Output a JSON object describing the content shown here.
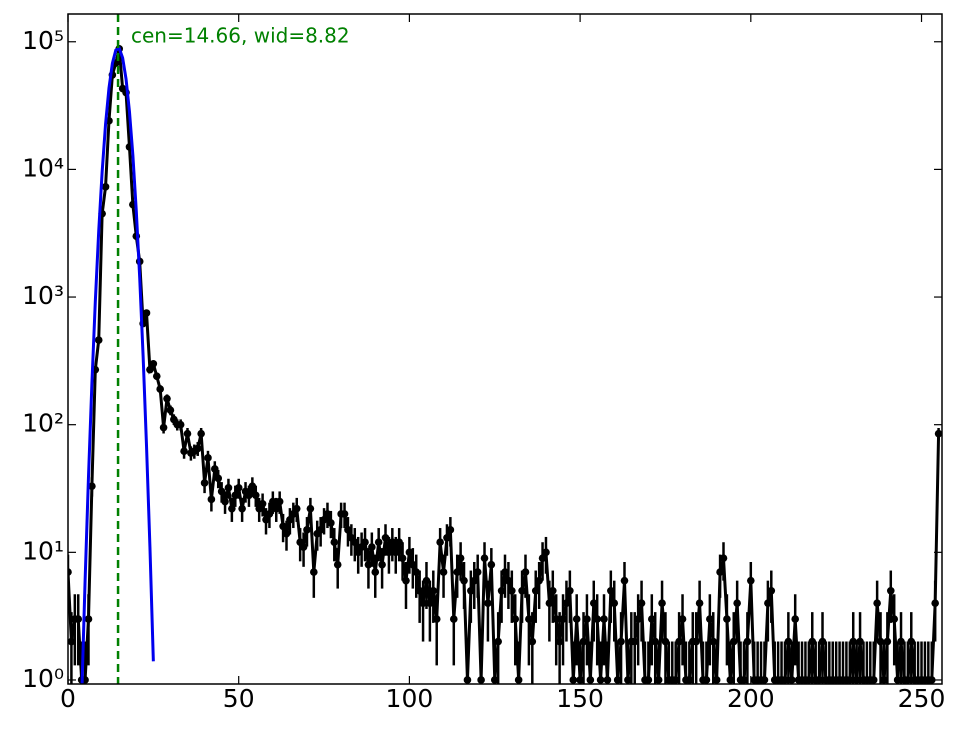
{
  "chart_data": {
    "type": "errorbar",
    "annotation": "cen=14.66, wid=8.82",
    "vline": {
      "x": 14.66,
      "color": "#008000"
    },
    "xlim": [
      0,
      256
    ],
    "ylim": [
      0.93,
      165000
    ],
    "log_y": true,
    "xticks": [
      0,
      50,
      100,
      150,
      200,
      250
    ],
    "yticks": [
      {
        "value": 1,
        "label": "10⁰"
      },
      {
        "value": 10,
        "label": "10¹"
      },
      {
        "value": 100,
        "label": "10²"
      },
      {
        "value": 1000,
        "label": "10³"
      },
      {
        "value": 10000,
        "label": "10⁴"
      },
      {
        "value": 100000,
        "label": "10⁵"
      }
    ],
    "series": [
      {
        "color": "#000000",
        "x": [
          0,
          1,
          2,
          3,
          4,
          5,
          6,
          7,
          8,
          9,
          10,
          11,
          12,
          13,
          14,
          15,
          16,
          17,
          18,
          19,
          20,
          21,
          22,
          23,
          24,
          25,
          26,
          27,
          28,
          29,
          30,
          31,
          32,
          33,
          34,
          35,
          36,
          37,
          38,
          39,
          40,
          41,
          42,
          43,
          44,
          45,
          46,
          47,
          48,
          49,
          50,
          51,
          52,
          53,
          54,
          55,
          56,
          57,
          58,
          59,
          60,
          61,
          62,
          63,
          64,
          65,
          66,
          67,
          68,
          69,
          70,
          71,
          72,
          73,
          74,
          75,
          76,
          77,
          78,
          79,
          80,
          81,
          82,
          83,
          84,
          85,
          86,
          87,
          88,
          89,
          90,
          91,
          92,
          93,
          94,
          95,
          96,
          97,
          98,
          99,
          100,
          101,
          102,
          103,
          104,
          105,
          106,
          107,
          108,
          109,
          110,
          111,
          112,
          113,
          114,
          115,
          116,
          117,
          118,
          119,
          120,
          121,
          122,
          123,
          124,
          125,
          126,
          127,
          128,
          129,
          130,
          131,
          132,
          133,
          134,
          135,
          136,
          137,
          138,
          139,
          140,
          141,
          142,
          143,
          144,
          145,
          146,
          147,
          148,
          149,
          150,
          151,
          152,
          153,
          154,
          155,
          156,
          157,
          158,
          159,
          160,
          161,
          162,
          163,
          164,
          165,
          166,
          167,
          168,
          169,
          170,
          171,
          172,
          173,
          174,
          175,
          176,
          177,
          178,
          179,
          180,
          181,
          182,
          183,
          184,
          185,
          186,
          187,
          188,
          189,
          190,
          191,
          192,
          193,
          194,
          195,
          196,
          197,
          198,
          199,
          200,
          201,
          202,
          203,
          204,
          205,
          206,
          207,
          208,
          209,
          210,
          211,
          212,
          213,
          214,
          215,
          216,
          217,
          218,
          219,
          220,
          221,
          222,
          223,
          224,
          225,
          226,
          227,
          228,
          229,
          230,
          231,
          232,
          233,
          234,
          235,
          236,
          237,
          238,
          239,
          240,
          241,
          242,
          243,
          244,
          245,
          246,
          247,
          248,
          249,
          250,
          251,
          252,
          253,
          254,
          255
        ],
        "values": [
          7,
          2,
          3,
          3,
          1,
          1,
          3,
          33,
          270,
          460,
          4500,
          7300,
          24000,
          55000,
          68000,
          88000,
          43000,
          40000,
          15000,
          5300,
          3000,
          1900,
          620,
          750,
          270,
          300,
          240,
          190,
          95,
          160,
          130,
          110,
          100,
          100,
          62,
          85,
          60,
          62,
          65,
          85,
          35,
          55,
          26,
          45,
          38,
          30,
          25,
          32,
          22,
          28,
          32,
          22,
          30,
          28,
          33,
          28,
          22,
          24,
          18,
          20,
          25,
          22,
          25,
          16,
          14,
          18,
          20,
          22,
          12,
          11,
          15,
          22,
          7,
          14,
          15,
          18,
          20,
          17,
          12,
          8,
          20,
          20,
          15,
          13,
          12,
          10,
          11,
          12,
          8,
          11,
          7,
          12,
          8,
          13,
          10,
          12,
          10,
          12,
          9,
          6,
          10,
          8,
          7,
          5,
          4,
          6,
          4,
          5,
          3,
          12,
          7,
          13,
          15,
          3,
          7,
          9,
          6,
          1,
          5,
          6,
          7,
          1,
          9,
          4,
          8,
          1,
          2,
          5,
          7,
          6,
          5,
          3,
          1,
          5,
          7,
          3,
          2,
          5,
          6,
          9,
          10,
          4,
          5,
          3,
          2,
          3,
          4,
          5,
          1,
          3,
          1,
          2,
          3,
          1,
          4,
          3,
          1,
          3,
          1,
          5,
          4,
          1,
          2,
          6,
          1,
          2,
          2,
          3,
          4,
          1,
          1,
          3,
          2,
          1,
          4,
          2,
          1,
          1,
          1,
          2,
          3,
          1,
          1,
          2,
          2,
          4,
          1,
          1,
          3,
          2,
          1,
          7,
          9,
          3,
          1,
          2,
          4,
          1,
          1,
          2,
          6,
          1,
          1,
          1,
          1,
          4,
          5,
          1,
          1,
          1,
          1,
          2,
          1,
          3,
          1,
          1,
          1,
          1,
          2,
          1,
          1,
          2,
          1,
          1,
          1,
          1,
          1,
          1,
          1,
          1,
          2,
          1,
          2,
          1,
          1,
          1,
          1,
          4,
          2,
          1,
          2,
          5,
          3,
          1,
          2,
          1,
          1,
          2,
          1,
          1,
          1,
          1,
          1,
          1,
          4,
          85
        ],
        "errors": [
          2.6,
          1.4,
          1.7,
          1.7,
          1,
          1,
          1.7,
          5.7,
          16,
          21,
          67,
          85,
          155,
          235,
          261,
          297,
          207,
          200,
          122,
          73,
          55,
          44,
          25,
          27,
          16,
          17,
          15.5,
          13.8,
          9.7,
          12.6,
          11.4,
          10.5,
          10,
          10,
          7.9,
          9.2,
          7.7,
          7.9,
          8.1,
          9.2,
          5.9,
          7.4,
          5.1,
          6.7,
          6.2,
          5.5,
          5,
          5.7,
          4.7,
          5.3,
          5.7,
          4.7,
          5.5,
          5.3,
          5.7,
          5.3,
          4.7,
          4.9,
          4.2,
          4.5,
          5,
          4.7,
          5,
          4,
          3.7,
          4.2,
          4.5,
          4.7,
          3.5,
          3.3,
          3.9,
          4.7,
          2.6,
          3.7,
          3.9,
          4.2,
          4.5,
          4.1,
          3.5,
          2.8,
          4.5,
          4.5,
          3.9,
          3.6,
          3.5,
          3.2,
          3.3,
          3.5,
          2.8,
          3.3,
          2.6,
          3.5,
          2.8,
          3.6,
          3.2,
          3.5,
          3.2,
          3.5,
          3,
          2.4,
          3.2,
          2.8,
          2.6,
          2.2,
          2,
          2.4,
          2,
          2.2,
          1.7,
          3.5,
          2.6,
          3.6,
          3.9,
          1.7,
          2.6,
          3,
          2.4,
          1,
          2.2,
          2.4,
          2.6,
          1,
          3,
          2,
          2.8,
          1,
          1.4,
          2.2,
          2.6,
          2.4,
          2.2,
          1.7,
          1,
          2.2,
          2.6,
          1.7,
          1.4,
          2.2,
          2.4,
          3,
          3.2,
          2,
          2.2,
          1.7,
          1.4,
          1.7,
          2,
          2.2,
          1,
          1.7,
          1,
          1.4,
          1.7,
          1,
          2,
          1.7,
          1,
          1.7,
          1,
          2.2,
          2,
          1,
          1.4,
          2.4,
          1,
          1.4,
          1.4,
          1.7,
          2,
          1,
          1,
          1.7,
          1.4,
          1,
          2,
          1.4,
          1,
          1,
          1,
          1.4,
          1.7,
          1,
          1,
          1.4,
          1.4,
          2,
          1,
          1,
          1.7,
          1.4,
          1,
          2.6,
          3,
          1.7,
          1,
          1.4,
          2,
          1,
          1,
          1.4,
          2.4,
          1,
          1,
          1,
          1,
          2,
          2.2,
          1,
          1,
          1,
          1,
          1.4,
          1,
          1.7,
          1,
          1,
          1,
          1,
          1.4,
          1,
          1,
          1.4,
          1,
          1,
          1,
          1,
          1,
          1,
          1,
          1,
          1.4,
          1,
          1.4,
          1,
          1,
          1,
          1,
          2,
          1.4,
          1,
          1.4,
          2.2,
          1.7,
          1,
          1.4,
          1,
          1,
          1.4,
          1,
          1,
          1,
          1,
          1,
          1,
          2,
          9.2
        ]
      },
      {
        "color": "#0000ee",
        "kind": "line",
        "x": [
          4,
          5,
          6,
          7,
          8,
          9,
          10,
          11,
          12,
          13,
          14,
          15,
          16,
          17,
          18,
          19,
          20,
          21,
          22,
          23,
          24,
          25
        ],
        "values": [
          0.72,
          5.9,
          39,
          210,
          922,
          3290,
          9560,
          22600,
          43300,
          67700,
          86000,
          88900,
          74700,
          51100,
          28400,
          12900,
          4730,
          1420,
          346,
          68,
          11,
          1.4
        ]
      }
    ]
  }
}
